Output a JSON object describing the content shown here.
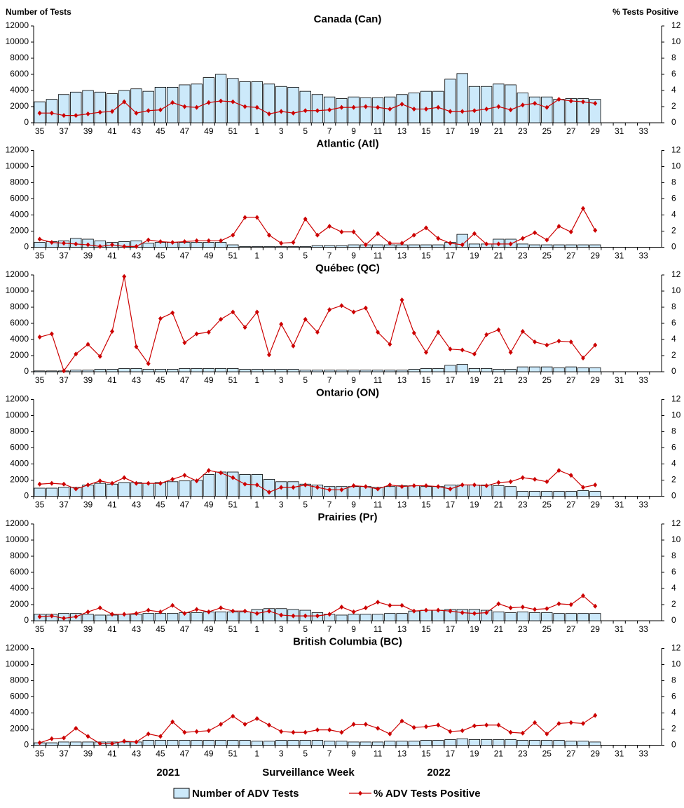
{
  "chart_data": [
    {
      "type": "bar-line",
      "title": "Canada (Can)",
      "y_label": "Number of Tests",
      "y2_label": "% Tests Positive",
      "categories": [
        "35",
        null,
        "37",
        null,
        "39",
        null,
        "41",
        null,
        "43",
        null,
        "45",
        null,
        "47",
        null,
        "49",
        null,
        "51",
        null,
        "1",
        null,
        "3",
        null,
        "5",
        null,
        "7",
        null,
        "9",
        null,
        "11",
        null,
        "13",
        null,
        "15",
        null,
        "17",
        null,
        "19",
        null,
        "21",
        null,
        "23",
        null,
        "25",
        null,
        "27",
        null,
        "29",
        null,
        "31",
        null,
        "33",
        null
      ],
      "ylim": [
        0,
        12000
      ],
      "yticks": [
        0,
        2000,
        4000,
        6000,
        8000,
        10000,
        12000
      ],
      "y2lim": [
        0,
        12
      ],
      "y2ticks": [
        0,
        2,
        4,
        6,
        8,
        10,
        12
      ],
      "series": [
        {
          "type": "bar",
          "color": "#cce9fa",
          "values": [
            2600,
            2900,
            3500,
            3800,
            4000,
            3800,
            3600,
            4000,
            4200,
            3900,
            4400,
            4400,
            4700,
            4800,
            5600,
            6000,
            5500,
            5100,
            5100,
            4800,
            4500,
            4400,
            3900,
            3500,
            3200,
            3000,
            3200,
            3100,
            3100,
            3200,
            3500,
            3700,
            3900,
            3900,
            5400,
            6100,
            4500,
            4500,
            4800,
            4700,
            3700,
            3200,
            3200,
            2900,
            3000,
            3000,
            2900,
            null,
            null,
            null,
            null,
            null
          ]
        },
        {
          "type": "line",
          "axis": "y2",
          "color": "#cc0000",
          "values": [
            1.2,
            1.2,
            0.9,
            0.9,
            1.1,
            1.3,
            1.4,
            2.6,
            1.2,
            1.5,
            1.6,
            2.5,
            2.0,
            1.9,
            2.5,
            2.7,
            2.6,
            2.0,
            1.9,
            1.1,
            1.4,
            1.2,
            1.5,
            1.5,
            1.6,
            1.9,
            1.9,
            2.0,
            1.9,
            1.7,
            2.3,
            1.7,
            1.7,
            1.9,
            1.4,
            1.4,
            1.5,
            1.7,
            2.0,
            1.6,
            2.2,
            2.4,
            1.9,
            2.9,
            2.7,
            2.6,
            2.4,
            null,
            null,
            null,
            null,
            null
          ]
        }
      ]
    },
    {
      "type": "bar-line",
      "title": "Atlantic (Atl)",
      "categories": [
        "35",
        null,
        "37",
        null,
        "39",
        null,
        "41",
        null,
        "43",
        null,
        "45",
        null,
        "47",
        null,
        "49",
        null,
        "51",
        null,
        "1",
        null,
        "3",
        null,
        "5",
        null,
        "7",
        null,
        "9",
        null,
        "11",
        null,
        "13",
        null,
        "15",
        null,
        "17",
        null,
        "19",
        null,
        "21",
        null,
        "23",
        null,
        "25",
        null,
        "27",
        null,
        "29",
        null,
        "31",
        null,
        "33",
        null
      ],
      "ylim": [
        0,
        12000
      ],
      "yticks": [
        0,
        2000,
        4000,
        6000,
        8000,
        10000,
        12000
      ],
      "y2lim": [
        0,
        12
      ],
      "y2ticks": [
        0,
        2,
        4,
        6,
        8,
        10,
        12
      ],
      "series": [
        {
          "type": "bar",
          "color": "#cce9fa",
          "values": [
            600,
            700,
            800,
            1100,
            1000,
            800,
            600,
            700,
            800,
            500,
            600,
            600,
            600,
            600,
            600,
            600,
            300,
            100,
            100,
            100,
            100,
            100,
            100,
            200,
            200,
            200,
            300,
            300,
            300,
            300,
            300,
            300,
            300,
            300,
            600,
            1600,
            400,
            400,
            1000,
            1000,
            400,
            300,
            300,
            300,
            300,
            300,
            300,
            null,
            null,
            null,
            null,
            null
          ]
        },
        {
          "type": "line",
          "axis": "y2",
          "color": "#cc0000",
          "values": [
            1.0,
            0.6,
            0.5,
            0.4,
            0.3,
            0.1,
            0.3,
            0.1,
            0.1,
            0.9,
            0.7,
            0.6,
            0.7,
            0.8,
            0.8,
            0.8,
            1.5,
            3.7,
            3.7,
            1.5,
            0.5,
            0.6,
            3.5,
            1.5,
            2.6,
            1.9,
            1.9,
            0.3,
            1.7,
            0.5,
            0.5,
            1.5,
            2.4,
            1.1,
            0.5,
            0.3,
            1.7,
            0.4,
            0.4,
            0.4,
            1.1,
            1.8,
            0.9,
            2.6,
            1.9,
            4.8,
            2.1,
            null,
            null,
            null,
            null,
            null
          ]
        }
      ]
    },
    {
      "type": "bar-line",
      "title": "Québec (QC)",
      "categories": [
        "35",
        null,
        "37",
        null,
        "39",
        null,
        "41",
        null,
        "43",
        null,
        "45",
        null,
        "47",
        null,
        "49",
        null,
        "51",
        null,
        "1",
        null,
        "3",
        null,
        "5",
        null,
        "7",
        null,
        "9",
        null,
        "11",
        null,
        "13",
        null,
        "15",
        null,
        "17",
        null,
        "19",
        null,
        "21",
        null,
        "23",
        null,
        "25",
        null,
        "27",
        null,
        "29",
        null,
        "31",
        null,
        "33",
        null
      ],
      "ylim": [
        0,
        12000
      ],
      "yticks": [
        0,
        2000,
        4000,
        6000,
        8000,
        10000,
        12000
      ],
      "y2lim": [
        0,
        12
      ],
      "y2ticks": [
        0,
        2,
        4,
        6,
        8,
        10,
        12
      ],
      "series": [
        {
          "type": "bar",
          "color": "#cce9fa",
          "values": [
            100,
            100,
            100,
            200,
            200,
            300,
            300,
            400,
            400,
            300,
            300,
            300,
            400,
            400,
            400,
            400,
            400,
            300,
            300,
            300,
            300,
            300,
            200,
            200,
            200,
            200,
            200,
            200,
            200,
            200,
            200,
            300,
            400,
            400,
            800,
            900,
            400,
            400,
            300,
            300,
            600,
            600,
            600,
            500,
            600,
            500,
            500,
            null,
            null,
            null,
            null,
            null
          ]
        },
        {
          "type": "line",
          "axis": "y2",
          "color": "#cc0000",
          "values": [
            4.3,
            4.7,
            0.1,
            2.2,
            3.4,
            1.9,
            5.0,
            11.8,
            3.1,
            1.0,
            6.6,
            7.3,
            3.6,
            4.7,
            4.9,
            6.5,
            7.4,
            5.5,
            7.4,
            2.1,
            5.9,
            3.2,
            6.5,
            4.9,
            7.7,
            8.2,
            7.4,
            7.9,
            4.9,
            3.4,
            8.9,
            4.8,
            2.4,
            4.9,
            2.8,
            2.7,
            2.2,
            4.6,
            5.2,
            2.4,
            5.0,
            3.7,
            3.3,
            3.8,
            3.7,
            1.7,
            3.3,
            null,
            null,
            null,
            null,
            null
          ]
        }
      ]
    },
    {
      "type": "bar-line",
      "title": "Ontario (ON)",
      "categories": [
        "35",
        null,
        "37",
        null,
        "39",
        null,
        "41",
        null,
        "43",
        null,
        "45",
        null,
        "47",
        null,
        "49",
        null,
        "51",
        null,
        "1",
        null,
        "3",
        null,
        "5",
        null,
        "7",
        null,
        "9",
        null,
        "11",
        null,
        "13",
        null,
        "15",
        null,
        "17",
        null,
        "19",
        null,
        "21",
        null,
        "23",
        null,
        "25",
        null,
        "27",
        null,
        "29",
        null,
        "31",
        null,
        "33",
        null
      ],
      "ylim": [
        0,
        12000
      ],
      "yticks": [
        0,
        2000,
        4000,
        6000,
        8000,
        10000,
        12000
      ],
      "y2lim": [
        0,
        12
      ],
      "y2ticks": [
        0,
        2,
        4,
        6,
        8,
        10,
        12
      ],
      "series": [
        {
          "type": "bar",
          "color": "#cce9fa",
          "values": [
            1000,
            1000,
            1100,
            1100,
            1400,
            1600,
            1500,
            1700,
            1700,
            1600,
            1700,
            1800,
            1900,
            2000,
            2700,
            3000,
            3000,
            2700,
            2700,
            2100,
            1800,
            1800,
            1500,
            1400,
            1200,
            1200,
            1200,
            1200,
            1100,
            1200,
            1300,
            1300,
            1200,
            1200,
            1400,
            1400,
            1400,
            1400,
            1300,
            1200,
            600,
            600,
            600,
            600,
            600,
            700,
            600,
            null,
            null,
            null,
            null,
            null
          ]
        },
        {
          "type": "line",
          "axis": "y2",
          "color": "#cc0000",
          "values": [
            1.5,
            1.6,
            1.5,
            0.9,
            1.4,
            1.9,
            1.6,
            2.3,
            1.6,
            1.6,
            1.6,
            2.1,
            2.6,
            1.9,
            3.2,
            2.9,
            2.3,
            1.5,
            1.4,
            0.5,
            1.1,
            1.1,
            1.4,
            1.1,
            0.8,
            0.8,
            1.3,
            1.2,
            0.9,
            1.4,
            1.2,
            1.3,
            1.3,
            1.2,
            0.9,
            1.4,
            1.4,
            1.3,
            1.7,
            1.8,
            2.3,
            2.1,
            1.8,
            3.2,
            2.6,
            1.1,
            1.4,
            null,
            null,
            null,
            null,
            null
          ]
        }
      ]
    },
    {
      "type": "bar-line",
      "title": "Prairies (Pr)",
      "categories": [
        "35",
        null,
        "37",
        null,
        "39",
        null,
        "41",
        null,
        "43",
        null,
        "45",
        null,
        "47",
        null,
        "49",
        null,
        "51",
        null,
        "1",
        null,
        "3",
        null,
        "5",
        null,
        "7",
        null,
        "9",
        null,
        "11",
        null,
        "13",
        null,
        "15",
        null,
        "17",
        null,
        "19",
        null,
        "21",
        null,
        "23",
        null,
        "25",
        null,
        "27",
        null,
        "29",
        null,
        "31",
        null,
        "33",
        null
      ],
      "ylim": [
        0,
        12000
      ],
      "yticks": [
        0,
        2000,
        4000,
        6000,
        8000,
        10000,
        12000
      ],
      "y2lim": [
        0,
        12
      ],
      "y2ticks": [
        0,
        2,
        4,
        6,
        8,
        10,
        12
      ],
      "series": [
        {
          "type": "bar",
          "color": "#cce9fa",
          "values": [
            800,
            800,
            900,
            900,
            800,
            700,
            700,
            800,
            800,
            900,
            900,
            900,
            1000,
            1000,
            1100,
            1100,
            1100,
            1100,
            1400,
            1500,
            1500,
            1400,
            1300,
            1000,
            800,
            700,
            800,
            800,
            800,
            900,
            900,
            1200,
            1300,
            1300,
            1400,
            1400,
            1400,
            1300,
            1100,
            1000,
            1100,
            1000,
            1000,
            900,
            900,
            900,
            900,
            null,
            null,
            null,
            null,
            null
          ]
        },
        {
          "type": "line",
          "axis": "y2",
          "color": "#cc0000",
          "values": [
            0.5,
            0.6,
            0.3,
            0.5,
            1.1,
            1.6,
            0.8,
            0.8,
            0.9,
            1.3,
            1.1,
            1.9,
            0.9,
            1.4,
            1.1,
            1.6,
            1.2,
            1.2,
            0.9,
            1.2,
            0.7,
            0.6,
            0.6,
            0.6,
            0.8,
            1.7,
            1.1,
            1.6,
            2.3,
            1.9,
            1.9,
            1.2,
            1.3,
            1.3,
            1.2,
            1.0,
            0.9,
            1.0,
            2.1,
            1.6,
            1.7,
            1.4,
            1.5,
            2.1,
            2.0,
            3.1,
            1.8,
            null,
            null,
            null,
            null,
            null
          ]
        }
      ]
    },
    {
      "type": "bar-line",
      "title": "British Columbia (BC)",
      "x_label": "Surveillance Week",
      "annotations": [
        "2021",
        "2022"
      ],
      "categories": [
        "35",
        null,
        "37",
        null,
        "39",
        null,
        "41",
        null,
        "43",
        null,
        "45",
        null,
        "47",
        null,
        "49",
        null,
        "51",
        null,
        "1",
        null,
        "3",
        null,
        "5",
        null,
        "7",
        null,
        "9",
        null,
        "11",
        null,
        "13",
        null,
        "15",
        null,
        "17",
        null,
        "19",
        null,
        "21",
        null,
        "23",
        null,
        "25",
        null,
        "27",
        null,
        "29",
        null,
        "31",
        null,
        "33",
        null
      ],
      "ylim": [
        0,
        12000
      ],
      "yticks": [
        0,
        2000,
        4000,
        6000,
        8000,
        10000,
        12000
      ],
      "y2lim": [
        0,
        12
      ],
      "y2ticks": [
        0,
        2,
        4,
        6,
        8,
        10,
        12
      ],
      "series": [
        {
          "type": "bar",
          "name": "Number of ADV Tests",
          "color": "#cce9fa",
          "values": [
            300,
            300,
            400,
            400,
            400,
            400,
            400,
            400,
            400,
            600,
            600,
            600,
            600,
            600,
            600,
            600,
            600,
            600,
            500,
            500,
            600,
            600,
            600,
            600,
            500,
            500,
            400,
            400,
            400,
            500,
            500,
            500,
            600,
            600,
            700,
            800,
            700,
            700,
            700,
            700,
            600,
            600,
            600,
            600,
            500,
            500,
            400,
            null,
            null,
            null,
            null,
            null
          ]
        },
        {
          "type": "line",
          "name": "% ADV Tests Positive",
          "axis": "y2",
          "color": "#cc0000",
          "values": [
            0.3,
            0.8,
            0.9,
            2.1,
            1.1,
            0.2,
            0.2,
            0.5,
            0.4,
            1.4,
            1.1,
            2.9,
            1.6,
            1.7,
            1.8,
            2.6,
            3.6,
            2.6,
            3.3,
            2.5,
            1.7,
            1.6,
            1.6,
            1.9,
            1.9,
            1.6,
            2.6,
            2.6,
            2.1,
            1.4,
            3.0,
            2.2,
            2.3,
            2.5,
            1.7,
            1.8,
            2.4,
            2.5,
            2.5,
            1.6,
            1.5,
            2.8,
            1.4,
            2.7,
            2.8,
            2.7,
            3.7,
            null,
            null,
            null,
            null,
            null
          ]
        }
      ]
    }
  ]
}
